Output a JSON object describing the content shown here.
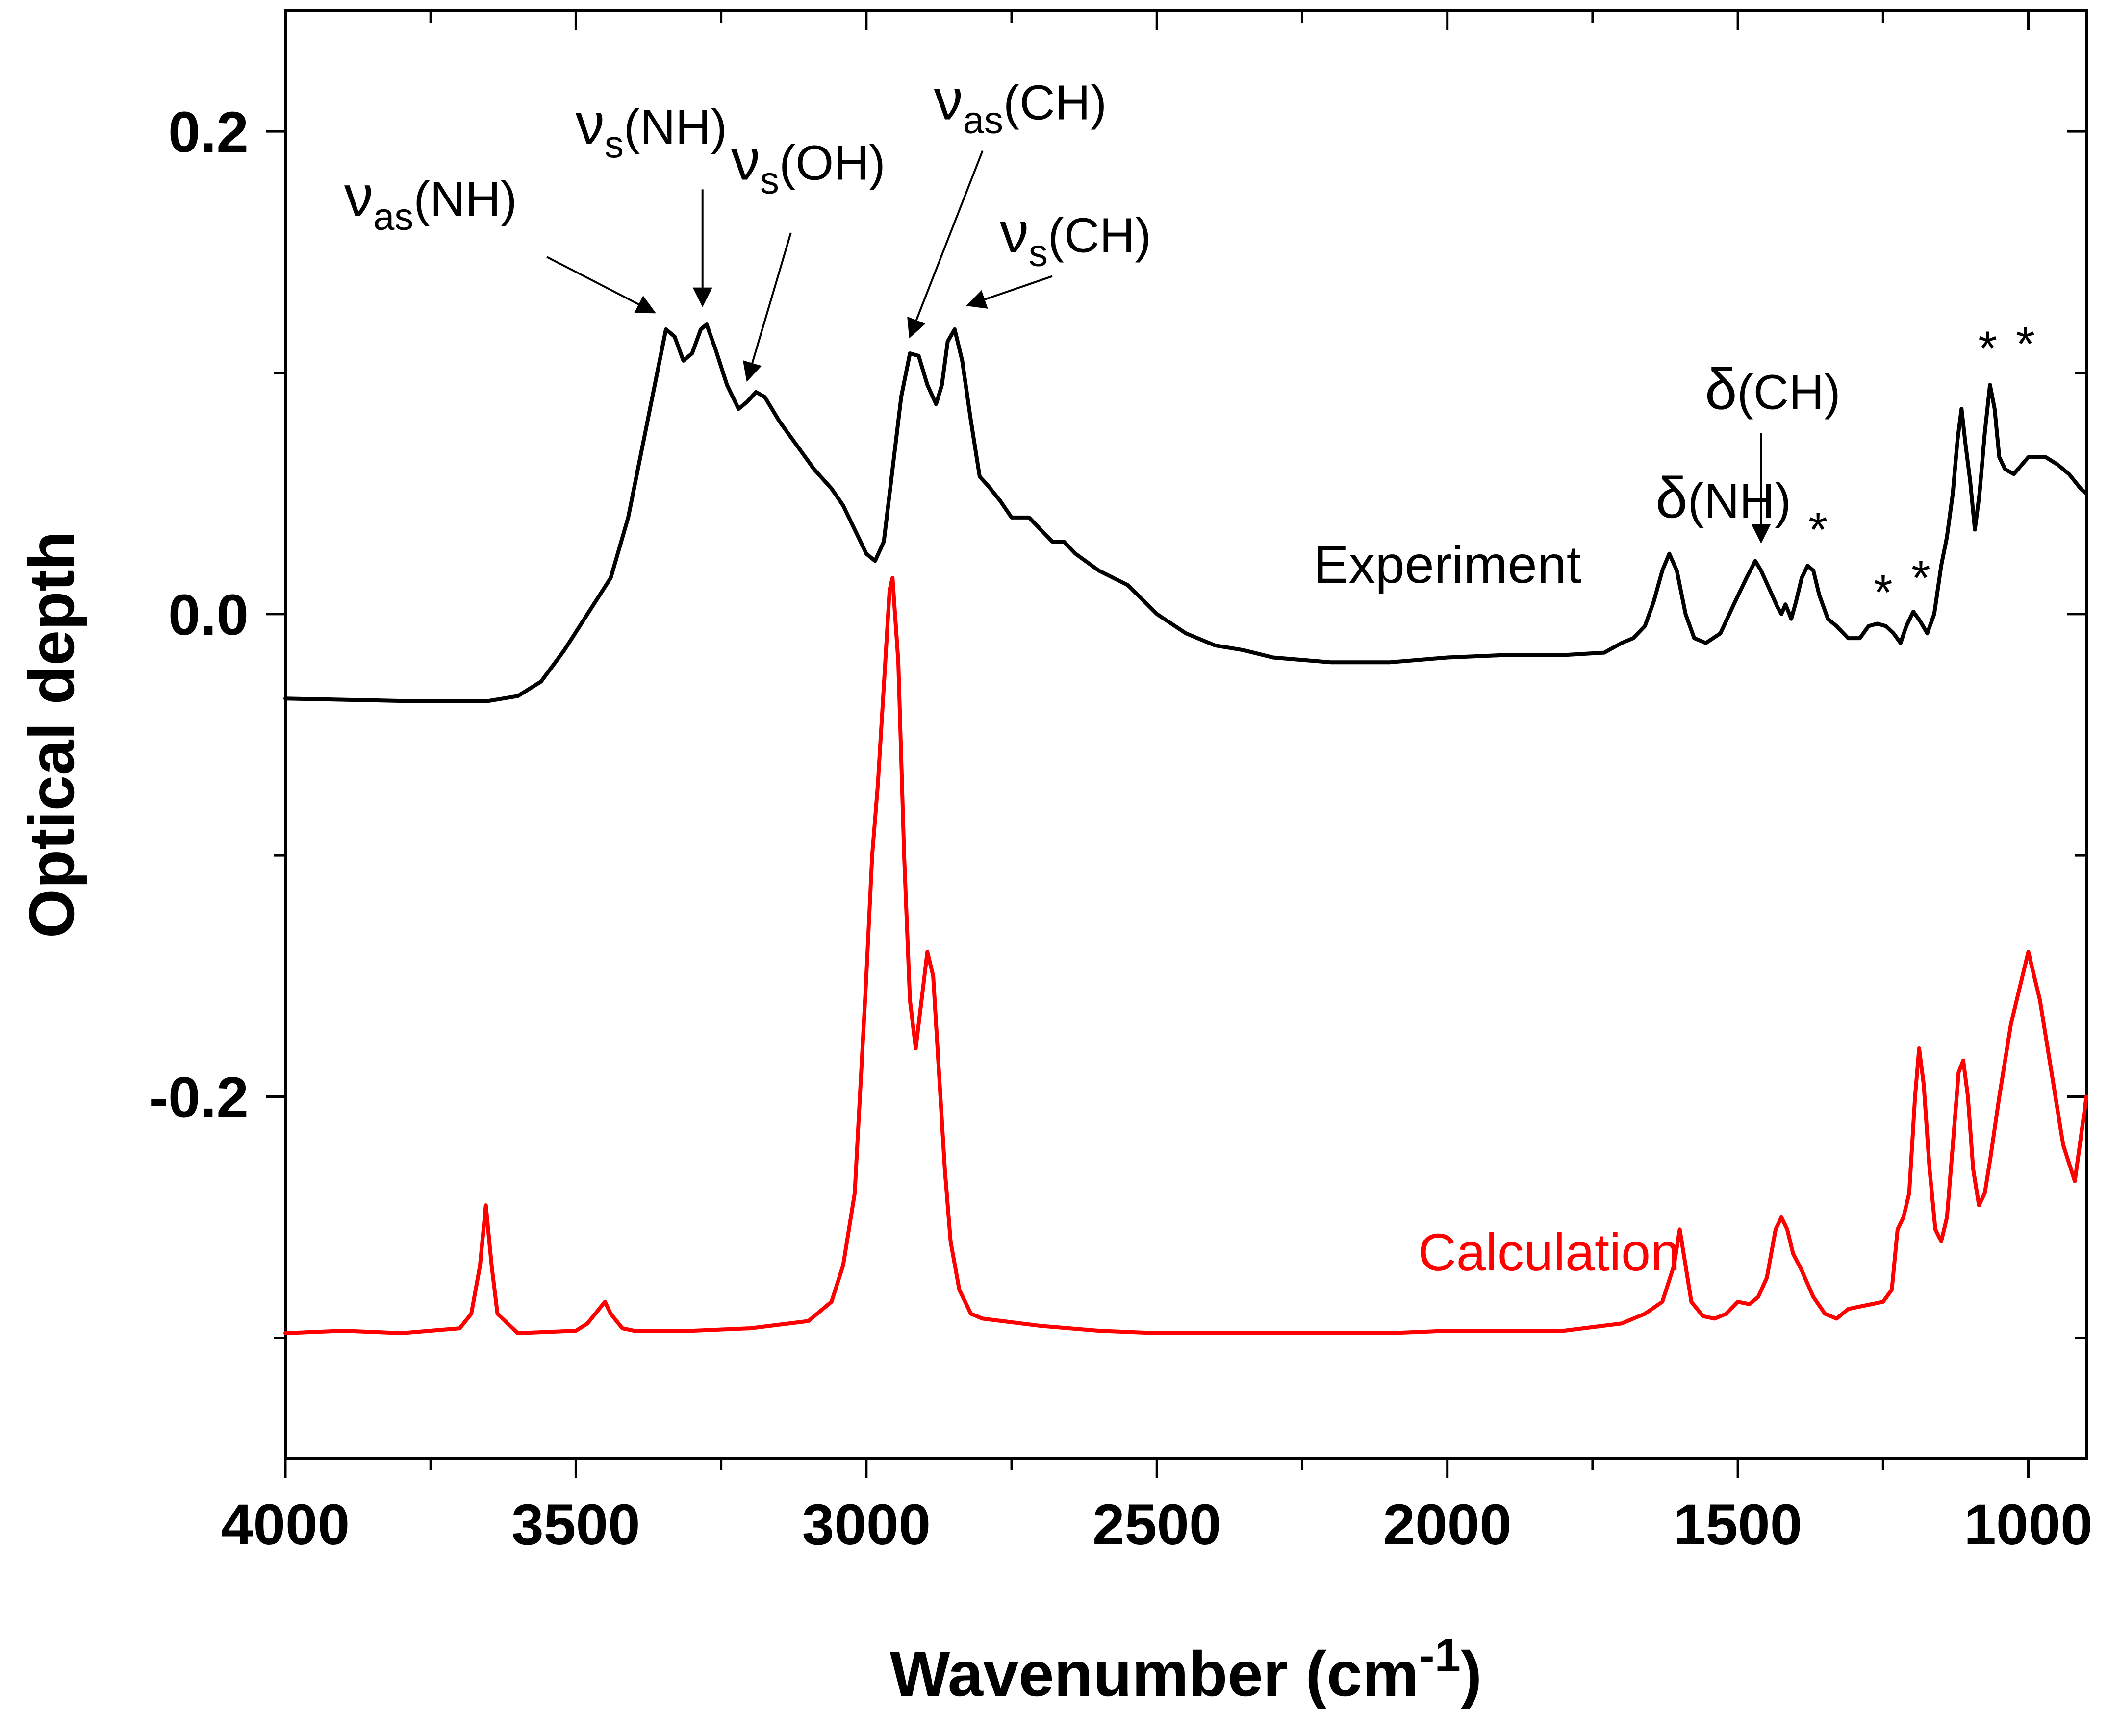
{
  "chart_data": {
    "type": "line",
    "title": "",
    "xlabel": "Wavenumber (cm",
    "xlabel_sup": "-1",
    "xlabel_close": ")",
    "ylabel": "Optical depth",
    "xlim": [
      4000,
      900
    ],
    "ylim": [
      -0.35,
      0.25
    ],
    "x_reversed": true,
    "grid": false,
    "x_major_ticks": [
      4000,
      3500,
      3000,
      2500,
      2000,
      1500,
      1000
    ],
    "x_minor_ticks": [
      3750,
      3250,
      2750,
      2250,
      1750,
      1250
    ],
    "y_labeled_ticks": [
      0.2,
      0.0,
      -0.2
    ],
    "y_tick_labels": [
      "0.2",
      "0.0",
      "-0.2"
    ],
    "y_minor_ticks": [
      0.1,
      -0.1,
      -0.3
    ],
    "series": [
      {
        "name": "Experiment",
        "color": "#000000",
        "points": [
          [
            4000,
            -0.035
          ],
          [
            3800,
            -0.036
          ],
          [
            3700,
            -0.036
          ],
          [
            3650,
            -0.036
          ],
          [
            3600,
            -0.034
          ],
          [
            3560,
            -0.028
          ],
          [
            3520,
            -0.015
          ],
          [
            3480,
            0.0
          ],
          [
            3440,
            0.015
          ],
          [
            3410,
            0.04
          ],
          [
            3385,
            0.07
          ],
          [
            3360,
            0.1
          ],
          [
            3345,
            0.118
          ],
          [
            3330,
            0.115
          ],
          [
            3315,
            0.105
          ],
          [
            3300,
            0.108
          ],
          [
            3285,
            0.118
          ],
          [
            3275,
            0.12
          ],
          [
            3260,
            0.11
          ],
          [
            3240,
            0.095
          ],
          [
            3220,
            0.085
          ],
          [
            3205,
            0.088
          ],
          [
            3190,
            0.092
          ],
          [
            3175,
            0.09
          ],
          [
            3150,
            0.08
          ],
          [
            3120,
            0.07
          ],
          [
            3090,
            0.06
          ],
          [
            3060,
            0.052
          ],
          [
            3040,
            0.045
          ],
          [
            3020,
            0.035
          ],
          [
            3000,
            0.025
          ],
          [
            2985,
            0.022
          ],
          [
            2970,
            0.03
          ],
          [
            2955,
            0.06
          ],
          [
            2940,
            0.09
          ],
          [
            2925,
            0.108
          ],
          [
            2910,
            0.107
          ],
          [
            2895,
            0.095
          ],
          [
            2880,
            0.087
          ],
          [
            2870,
            0.095
          ],
          [
            2860,
            0.113
          ],
          [
            2848,
            0.118
          ],
          [
            2835,
            0.105
          ],
          [
            2820,
            0.08
          ],
          [
            2805,
            0.057
          ],
          [
            2790,
            0.053
          ],
          [
            2770,
            0.047
          ],
          [
            2750,
            0.04
          ],
          [
            2720,
            0.04
          ],
          [
            2700,
            0.035
          ],
          [
            2680,
            0.03
          ],
          [
            2660,
            0.03
          ],
          [
            2640,
            0.025
          ],
          [
            2600,
            0.018
          ],
          [
            2550,
            0.012
          ],
          [
            2500,
            0.0
          ],
          [
            2450,
            -0.008
          ],
          [
            2400,
            -0.013
          ],
          [
            2350,
            -0.015
          ],
          [
            2300,
            -0.018
          ],
          [
            2200,
            -0.02
          ],
          [
            2100,
            -0.02
          ],
          [
            2000,
            -0.018
          ],
          [
            1900,
            -0.017
          ],
          [
            1800,
            -0.017
          ],
          [
            1730,
            -0.016
          ],
          [
            1700,
            -0.012
          ],
          [
            1680,
            -0.01
          ],
          [
            1660,
            -0.005
          ],
          [
            1645,
            0.005
          ],
          [
            1630,
            0.018
          ],
          [
            1618,
            0.025
          ],
          [
            1605,
            0.018
          ],
          [
            1590,
            0.0
          ],
          [
            1575,
            -0.01
          ],
          [
            1555,
            -0.012
          ],
          [
            1530,
            -0.008
          ],
          [
            1505,
            0.005
          ],
          [
            1485,
            0.015
          ],
          [
            1470,
            0.022
          ],
          [
            1460,
            0.018
          ],
          [
            1445,
            0.01
          ],
          [
            1432,
            0.003
          ],
          [
            1425,
            0.0
          ],
          [
            1418,
            0.004
          ],
          [
            1408,
            -0.002
          ],
          [
            1400,
            0.005
          ],
          [
            1390,
            0.015
          ],
          [
            1380,
            0.02
          ],
          [
            1370,
            0.018
          ],
          [
            1360,
            0.008
          ],
          [
            1345,
            -0.002
          ],
          [
            1330,
            -0.005
          ],
          [
            1310,
            -0.01
          ],
          [
            1290,
            -0.01
          ],
          [
            1275,
            -0.005
          ],
          [
            1260,
            -0.004
          ],
          [
            1245,
            -0.005
          ],
          [
            1232,
            -0.008
          ],
          [
            1220,
            -0.012
          ],
          [
            1210,
            -0.005
          ],
          [
            1198,
            0.001
          ],
          [
            1186,
            -0.003
          ],
          [
            1174,
            -0.008
          ],
          [
            1162,
            0.0
          ],
          [
            1150,
            0.02
          ],
          [
            1140,
            0.032
          ],
          [
            1130,
            0.05
          ],
          [
            1122,
            0.072
          ],
          [
            1115,
            0.085
          ],
          [
            1108,
            0.07
          ],
          [
            1100,
            0.055
          ],
          [
            1092,
            0.035
          ],
          [
            1084,
            0.05
          ],
          [
            1075,
            0.075
          ],
          [
            1066,
            0.095
          ],
          [
            1058,
            0.085
          ],
          [
            1050,
            0.065
          ],
          [
            1040,
            0.06
          ],
          [
            1025,
            0.058
          ],
          [
            1000,
            0.065
          ],
          [
            970,
            0.065
          ],
          [
            950,
            0.062
          ],
          [
            930,
            0.058
          ],
          [
            910,
            0.052
          ],
          [
            900,
            0.05
          ]
        ]
      },
      {
        "name": "Calculation",
        "color": "#ff0000",
        "points": [
          [
            4000,
            -0.298
          ],
          [
            3900,
            -0.297
          ],
          [
            3800,
            -0.298
          ],
          [
            3700,
            -0.296
          ],
          [
            3680,
            -0.29
          ],
          [
            3665,
            -0.27
          ],
          [
            3655,
            -0.245
          ],
          [
            3645,
            -0.27
          ],
          [
            3635,
            -0.29
          ],
          [
            3600,
            -0.298
          ],
          [
            3500,
            -0.297
          ],
          [
            3480,
            -0.294
          ],
          [
            3460,
            -0.288
          ],
          [
            3450,
            -0.285
          ],
          [
            3440,
            -0.29
          ],
          [
            3420,
            -0.296
          ],
          [
            3400,
            -0.297
          ],
          [
            3300,
            -0.297
          ],
          [
            3200,
            -0.296
          ],
          [
            3100,
            -0.293
          ],
          [
            3060,
            -0.285
          ],
          [
            3040,
            -0.27
          ],
          [
            3020,
            -0.24
          ],
          [
            3000,
            -0.15
          ],
          [
            2990,
            -0.1
          ],
          [
            2980,
            -0.07
          ],
          [
            2970,
            -0.03
          ],
          [
            2960,
            0.01
          ],
          [
            2955,
            0.015
          ],
          [
            2945,
            -0.02
          ],
          [
            2935,
            -0.1
          ],
          [
            2925,
            -0.16
          ],
          [
            2915,
            -0.18
          ],
          [
            2905,
            -0.16
          ],
          [
            2895,
            -0.14
          ],
          [
            2885,
            -0.15
          ],
          [
            2875,
            -0.19
          ],
          [
            2865,
            -0.23
          ],
          [
            2855,
            -0.26
          ],
          [
            2840,
            -0.28
          ],
          [
            2820,
            -0.29
          ],
          [
            2800,
            -0.292
          ],
          [
            2700,
            -0.295
          ],
          [
            2600,
            -0.297
          ],
          [
            2500,
            -0.298
          ],
          [
            2400,
            -0.298
          ],
          [
            2300,
            -0.298
          ],
          [
            2200,
            -0.298
          ],
          [
            2100,
            -0.298
          ],
          [
            2000,
            -0.297
          ],
          [
            1900,
            -0.297
          ],
          [
            1800,
            -0.297
          ],
          [
            1700,
            -0.294
          ],
          [
            1660,
            -0.29
          ],
          [
            1630,
            -0.285
          ],
          [
            1610,
            -0.27
          ],
          [
            1600,
            -0.255
          ],
          [
            1590,
            -0.27
          ],
          [
            1580,
            -0.285
          ],
          [
            1560,
            -0.291
          ],
          [
            1540,
            -0.292
          ],
          [
            1520,
            -0.29
          ],
          [
            1500,
            -0.285
          ],
          [
            1480,
            -0.286
          ],
          [
            1465,
            -0.283
          ],
          [
            1450,
            -0.275
          ],
          [
            1435,
            -0.255
          ],
          [
            1425,
            -0.25
          ],
          [
            1415,
            -0.255
          ],
          [
            1405,
            -0.265
          ],
          [
            1390,
            -0.272
          ],
          [
            1370,
            -0.283
          ],
          [
            1350,
            -0.29
          ],
          [
            1330,
            -0.292
          ],
          [
            1310,
            -0.288
          ],
          [
            1290,
            -0.287
          ],
          [
            1270,
            -0.286
          ],
          [
            1250,
            -0.285
          ],
          [
            1235,
            -0.28
          ],
          [
            1225,
            -0.255
          ],
          [
            1215,
            -0.25
          ],
          [
            1205,
            -0.24
          ],
          [
            1195,
            -0.2
          ],
          [
            1188,
            -0.18
          ],
          [
            1180,
            -0.195
          ],
          [
            1170,
            -0.23
          ],
          [
            1160,
            -0.255
          ],
          [
            1150,
            -0.26
          ],
          [
            1140,
            -0.25
          ],
          [
            1130,
            -0.22
          ],
          [
            1120,
            -0.19
          ],
          [
            1112,
            -0.185
          ],
          [
            1104,
            -0.2
          ],
          [
            1095,
            -0.23
          ],
          [
            1085,
            -0.245
          ],
          [
            1075,
            -0.24
          ],
          [
            1065,
            -0.225
          ],
          [
            1050,
            -0.2
          ],
          [
            1030,
            -0.17
          ],
          [
            1000,
            -0.14
          ],
          [
            980,
            -0.16
          ],
          [
            960,
            -0.19
          ],
          [
            940,
            -0.22
          ],
          [
            920,
            -0.235
          ],
          [
            900,
            -0.2
          ]
        ]
      }
    ],
    "series_labels": [
      {
        "text": "Experiment",
        "x": 2000,
        "y": 0.013,
        "color": "#000000"
      },
      {
        "text": "Calculation",
        "x": 1825,
        "y": -0.272,
        "color": "#ff0000"
      }
    ],
    "annotations": [
      {
        "main": "ν",
        "sub": "as",
        "rest": "(NH)",
        "x": 3750,
        "y": 0.165,
        "arrow_from": [
          3550,
          0.148
        ],
        "arrow_to": [
          3365,
          0.125
        ]
      },
      {
        "main": "ν",
        "sub": "s",
        "rest": "(NH)",
        "x": 3370,
        "y": 0.195,
        "arrow_from": [
          3282,
          0.176
        ],
        "arrow_to": [
          3282,
          0.128
        ]
      },
      {
        "main": "ν",
        "sub": "s",
        "rest": "(OH)",
        "x": 3100,
        "y": 0.18,
        "arrow_from": [
          3130,
          0.158
        ],
        "arrow_to": [
          3205,
          0.097
        ]
      },
      {
        "main": "ν",
        "sub": "as",
        "rest": "(CH)",
        "x": 2735,
        "y": 0.205,
        "arrow_from": [
          2800,
          0.192
        ],
        "arrow_to": [
          2925,
          0.115
        ]
      },
      {
        "main": "ν",
        "sub": "s",
        "rest": "(CH)",
        "x": 2640,
        "y": 0.15,
        "arrow_from": [
          2680,
          0.14
        ],
        "arrow_to": [
          2825,
          0.128
        ]
      },
      {
        "main": "δ",
        "sub": "",
        "rest": "(NH)",
        "x": 1525,
        "y": 0.04,
        "arrow_from": null,
        "arrow_to": null
      },
      {
        "main": "δ",
        "sub": "",
        "rest": "(CH)",
        "x": 1440,
        "y": 0.085,
        "arrow_from": [
          1460,
          0.075
        ],
        "arrow_to": [
          1460,
          0.03
        ]
      },
      {
        "main": "*",
        "sub": "",
        "rest": "",
        "x": 1362,
        "y": 0.028,
        "arrow_from": null,
        "arrow_to": null
      },
      {
        "main": "*",
        "sub": "",
        "rest": "",
        "x": 1250,
        "y": 0.002,
        "arrow_from": null,
        "arrow_to": null
      },
      {
        "main": "*",
        "sub": "",
        "rest": "",
        "x": 1185,
        "y": 0.008,
        "arrow_from": null,
        "arrow_to": null
      },
      {
        "main": "*",
        "sub": "",
        "rest": "",
        "x": 1070,
        "y": 0.103,
        "arrow_from": null,
        "arrow_to": null
      },
      {
        "main": "*",
        "sub": "",
        "rest": "",
        "x": 1005,
        "y": 0.105,
        "arrow_from": null,
        "arrow_to": null
      }
    ]
  }
}
